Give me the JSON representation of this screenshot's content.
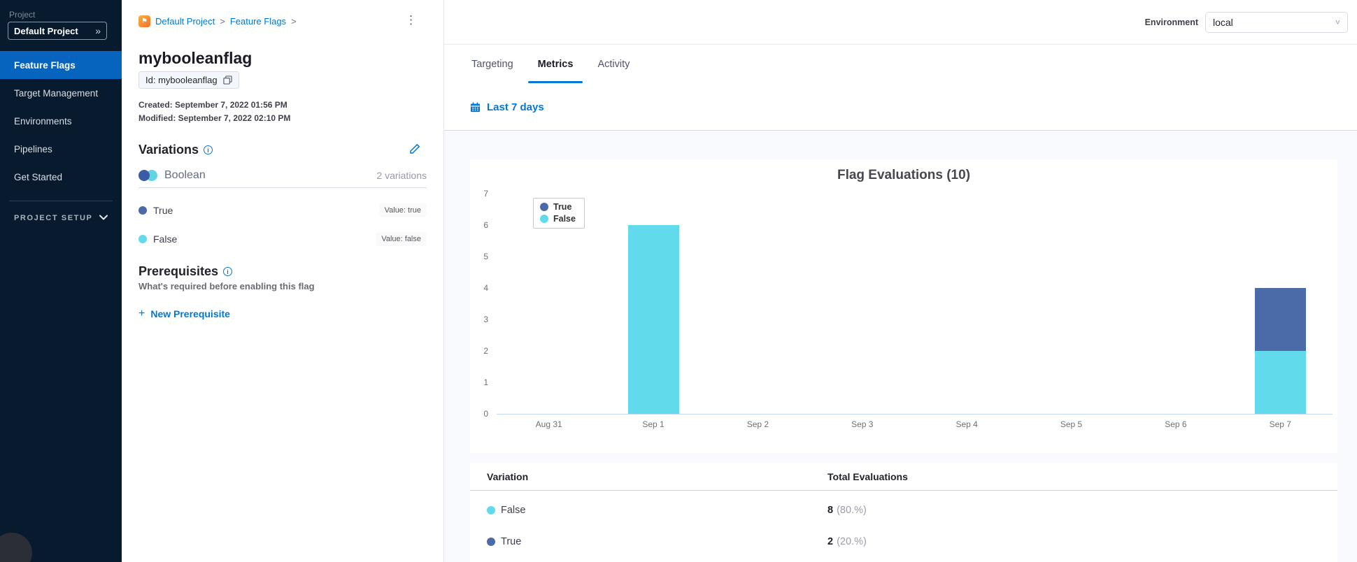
{
  "icons": {
    "kebab": "⋮",
    "double_chevron": "»",
    "select_chevron": "˅",
    "info": "i",
    "plus": "+",
    "flag_logo": "⚑"
  },
  "sidebar": {
    "project_label": "Project",
    "project_selector": "Default Project",
    "items": [
      {
        "label": "Feature Flags",
        "active": true
      },
      {
        "label": "Target Management",
        "active": false
      },
      {
        "label": "Environments",
        "active": false
      },
      {
        "label": "Pipelines",
        "active": false
      },
      {
        "label": "Get Started",
        "active": false
      }
    ],
    "project_setup": "PROJECT SETUP"
  },
  "flag_panel": {
    "breadcrumb": {
      "items": [
        "Default Project",
        "Feature Flags"
      ],
      "separator": ">"
    },
    "title": "mybooleanflag",
    "id_chip": "Id: mybooleanflag",
    "created": "Created: September 7, 2022 01:56 PM",
    "modified": "Modified: September 7, 2022 02:10 PM",
    "variations": {
      "heading": "Variations",
      "type_label": "Boolean",
      "count_label": "2 variations",
      "items": [
        {
          "name": "True",
          "value_label": "Value: true",
          "color": "#4a6aa8"
        },
        {
          "name": "False",
          "value_label": "Value: false",
          "color": "#61dbeb"
        }
      ]
    },
    "prerequisites": {
      "heading": "Prerequisites",
      "description": "What's required before enabling this flag",
      "new_button": "New Prerequisite"
    }
  },
  "main": {
    "environment_label": "Environment",
    "environment_value": "local",
    "tabs": [
      {
        "label": "Targeting",
        "active": false
      },
      {
        "label": "Metrics",
        "active": true
      },
      {
        "label": "Activity",
        "active": false
      }
    ],
    "date_range": "Last 7 days",
    "table": {
      "headers": [
        "Variation",
        "Total Evaluations"
      ],
      "rows": [
        {
          "variation": "False",
          "color": "#61dbeb",
          "count": "8",
          "percent": "(80.%)"
        },
        {
          "variation": "True",
          "color": "#4a6aa8",
          "count": "2",
          "percent": "(20.%)"
        }
      ]
    }
  },
  "chart_data": {
    "type": "bar",
    "stacked": true,
    "title": "Flag Evaluations (10)",
    "categories": [
      "Aug 31",
      "Sep 1",
      "Sep 2",
      "Sep 3",
      "Sep 4",
      "Sep 5",
      "Sep 6",
      "Sep 7"
    ],
    "series": [
      {
        "name": "True",
        "color": "#4a6aa8",
        "values": [
          0,
          0,
          0,
          0,
          0,
          0,
          0,
          2
        ]
      },
      {
        "name": "False",
        "color": "#61dbeb",
        "values": [
          0,
          6,
          0,
          0,
          0,
          0,
          0,
          2
        ]
      }
    ],
    "ylim": [
      0,
      7
    ],
    "yticks": [
      0,
      1,
      2,
      3,
      4,
      5,
      6,
      7
    ],
    "legend_position": "top-left",
    "grid": false
  }
}
